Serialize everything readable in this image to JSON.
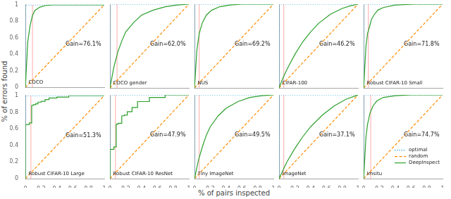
{
  "xlabel": "% of pairs inspected",
  "ylabel": "% of errors found",
  "chart_data": [
    {
      "type": "line",
      "annotations": [
        "Gain=76.1%",
        "COCO"
      ],
      "vline": {
        "value": 0.09,
        "color": "#ffaaaa"
      },
      "xlim": [
        0,
        1
      ],
      "ylim": [
        0,
        1
      ],
      "xticks": [
        0,
        0.2,
        0.4,
        0.6,
        0.8,
        1
      ],
      "yticks": [
        0,
        0.2,
        0.4,
        0.6,
        0.8,
        1
      ],
      "grid": false,
      "tick_labels": "y",
      "series": [
        {
          "name": "optimal",
          "color": "#1090d8",
          "line_style": "dotted",
          "x": [
            0,
            0.001,
            1.0
          ],
          "values": [
            0,
            1.0,
            1.0
          ]
        },
        {
          "name": "random",
          "color": "#ff8c00",
          "line_style": "dashed",
          "x": [
            0,
            1
          ],
          "values": [
            0,
            1
          ]
        },
        {
          "name": "DeepInspect",
          "color": "#2ca02c",
          "line_style": "solid",
          "x": [
            0,
            0.03,
            0.06,
            0.09,
            0.12,
            0.18,
            0.25,
            0.35,
            0.5,
            0.7,
            1.0
          ],
          "values": [
            0,
            0.55,
            0.75,
            0.87,
            0.93,
            0.97,
            0.99,
            1.0,
            1.0,
            1.0,
            1.0
          ]
        }
      ]
    },
    {
      "type": "line",
      "annotations": [
        "Gain=62.0%",
        "COCO gender"
      ],
      "vline": {
        "value": 0.09,
        "color": "#ffaaaa"
      },
      "xlim": [
        0,
        1
      ],
      "ylim": [
        0,
        1
      ],
      "xticks": [
        0,
        0.2,
        0.4,
        0.6,
        0.8,
        1
      ],
      "yticks": [
        0,
        0.2,
        0.4,
        0.6,
        0.8,
        1
      ],
      "grid": false,
      "tick_labels": false,
      "series": [
        {
          "name": "optimal",
          "color": "#1090d8",
          "line_style": "dotted",
          "x": [
            0,
            0.001,
            1.0
          ],
          "values": [
            0,
            1.0,
            1.0
          ]
        },
        {
          "name": "random",
          "color": "#ff8c00",
          "line_style": "dashed",
          "x": [
            0,
            1
          ],
          "values": [
            0,
            1
          ]
        },
        {
          "name": "DeepInspect",
          "color": "#2ca02c",
          "line_style": "solid",
          "x": [
            0,
            0.05,
            0.1,
            0.15,
            0.2,
            0.3,
            0.4,
            0.55,
            0.7,
            0.85,
            1.0
          ],
          "values": [
            0,
            0.25,
            0.43,
            0.56,
            0.67,
            0.78,
            0.87,
            0.93,
            0.97,
            0.99,
            1.0
          ]
        }
      ]
    },
    {
      "type": "line",
      "annotations": [
        "Gain=69.2%",
        "NUS"
      ],
      "vline": {
        "value": 0.06,
        "color": "#ffaaaa"
      },
      "xlim": [
        0,
        1
      ],
      "ylim": [
        0,
        1
      ],
      "xticks": [
        0,
        0.2,
        0.4,
        0.6,
        0.8,
        1
      ],
      "yticks": [
        0,
        0.2,
        0.4,
        0.6,
        0.8,
        1
      ],
      "grid": false,
      "tick_labels": false,
      "series": [
        {
          "name": "optimal",
          "color": "#1090d8",
          "line_style": "dotted",
          "x": [
            0,
            0.001,
            1.0
          ],
          "values": [
            0,
            1.0,
            1.0
          ]
        },
        {
          "name": "random",
          "color": "#ff8c00",
          "line_style": "dashed",
          "x": [
            0,
            1
          ],
          "values": [
            0,
            1
          ]
        },
        {
          "name": "DeepInspect",
          "color": "#2ca02c",
          "line_style": "solid",
          "x": [
            0,
            0.03,
            0.06,
            0.1,
            0.15,
            0.22,
            0.32,
            0.45,
            0.6,
            0.8,
            1.0
          ],
          "values": [
            0,
            0.45,
            0.65,
            0.78,
            0.87,
            0.93,
            0.97,
            0.99,
            1.0,
            1.0,
            1.0
          ]
        }
      ]
    },
    {
      "type": "line",
      "annotations": [
        "Gain=46.2%",
        "CIFAR-100"
      ],
      "vline": {
        "value": 0.06,
        "color": "#ffaaaa"
      },
      "xlim": [
        0,
        1
      ],
      "ylim": [
        0,
        1
      ],
      "xticks": [
        0,
        0.2,
        0.4,
        0.6,
        0.8,
        1
      ],
      "yticks": [
        0,
        0.2,
        0.4,
        0.6,
        0.8,
        1
      ],
      "grid": false,
      "tick_labels": false,
      "series": [
        {
          "name": "optimal",
          "color": "#1090d8",
          "line_style": "dotted",
          "x": [
            0,
            0.001,
            1.0
          ],
          "values": [
            0,
            1.0,
            1.0
          ]
        },
        {
          "name": "random",
          "color": "#ff8c00",
          "line_style": "dashed",
          "x": [
            0,
            1
          ],
          "values": [
            0,
            1
          ]
        },
        {
          "name": "DeepInspect",
          "color": "#2ca02c",
          "line_style": "solid",
          "x": [
            0,
            0.05,
            0.1,
            0.2,
            0.3,
            0.4,
            0.5,
            0.65,
            0.8,
            0.9,
            1.0
          ],
          "values": [
            0,
            0.12,
            0.22,
            0.4,
            0.55,
            0.67,
            0.77,
            0.88,
            0.95,
            0.98,
            1.0
          ]
        }
      ]
    },
    {
      "type": "line",
      "annotations": [
        "Gain=71.8%",
        "Robust CIFAR-10 Small"
      ],
      "vline": {
        "value": 0.06,
        "color": "#ffaaaa"
      },
      "xlim": [
        0,
        1
      ],
      "ylim": [
        0,
        1
      ],
      "xticks": [
        0,
        0.2,
        0.4,
        0.6,
        0.8,
        1
      ],
      "yticks": [
        0,
        0.2,
        0.4,
        0.6,
        0.8,
        1
      ],
      "grid": false,
      "tick_labels": false,
      "series": [
        {
          "name": "optimal",
          "color": "#1090d8",
          "line_style": "dotted",
          "x": [
            0,
            0.001,
            1.0
          ],
          "values": [
            0,
            1.0,
            1.0
          ]
        },
        {
          "name": "random",
          "color": "#ff8c00",
          "line_style": "dashed",
          "x": [
            0,
            1
          ],
          "values": [
            0,
            1
          ]
        },
        {
          "name": "DeepInspect",
          "color": "#2ca02c",
          "line_style": "solid",
          "x": [
            0,
            0.03,
            0.05,
            0.08,
            0.1,
            0.13,
            0.18,
            0.25,
            0.4,
            0.65,
            1.0
          ],
          "values": [
            0,
            0.5,
            0.65,
            0.75,
            0.82,
            0.87,
            0.93,
            0.96,
            0.99,
            1.0,
            1.0
          ]
        }
      ]
    },
    {
      "type": "line",
      "annotations": [
        "Gain=51.3%",
        "Robust CIFAR-10 Large"
      ],
      "vline": {
        "value": 0.07,
        "color": "#ffaaaa"
      },
      "xlim": [
        0,
        1
      ],
      "ylim": [
        0,
        1
      ],
      "xticks": [
        0,
        0.2,
        0.4,
        0.6,
        0.8,
        1
      ],
      "yticks": [
        0,
        0.2,
        0.4,
        0.6,
        0.8,
        1
      ],
      "grid": false,
      "series": [
        {
          "name": "optimal",
          "color": "#1090d8",
          "line_style": "dotted",
          "x": [
            0,
            0.001,
            1.0
          ],
          "values": [
            0,
            1.0,
            1.0
          ]
        },
        {
          "name": "random",
          "color": "#ff8c00",
          "line_style": "dashed",
          "x": [
            0,
            1
          ],
          "values": [
            0,
            1
          ]
        },
        {
          "name": "DeepInspect",
          "color": "#2ca02c",
          "line_style": "solid",
          "type": "step",
          "x": [
            0,
            0.05,
            0.08,
            0.1,
            0.13,
            0.16,
            0.2,
            0.25,
            0.3,
            0.4,
            0.55,
            0.75,
            1.0
          ],
          "values": [
            0,
            0.65,
            0.67,
            0.88,
            0.89,
            0.9,
            0.92,
            0.93,
            0.95,
            0.97,
            0.98,
            1.0,
            1.0
          ]
        }
      ]
    },
    {
      "type": "line",
      "annotations": [
        "Gain=47.9%",
        "Robust CIFAR-10 ResNet"
      ],
      "vline": {
        "value": 0.07,
        "color": "#ffaaaa"
      },
      "xlim": [
        0,
        1
      ],
      "ylim": [
        0,
        1
      ],
      "xticks": [
        0,
        0.2,
        0.4,
        0.6,
        0.8,
        1
      ],
      "yticks": [
        0,
        0.2,
        0.4,
        0.6,
        0.8,
        1
      ],
      "grid": false,
      "tick_labels": "x",
      "series": [
        {
          "name": "optimal",
          "color": "#1090d8",
          "line_style": "dotted",
          "x": [
            0,
            0.001,
            1.0
          ],
          "values": [
            0,
            1.0,
            1.0
          ]
        },
        {
          "name": "random",
          "color": "#ff8c00",
          "line_style": "dashed",
          "x": [
            0,
            1
          ],
          "values": [
            0,
            1
          ]
        },
        {
          "name": "DeepInspect",
          "color": "#2ca02c",
          "line_style": "solid",
          "type": "step",
          "x": [
            0,
            0.05,
            0.08,
            0.1,
            0.15,
            0.18,
            0.22,
            0.28,
            0.35,
            0.5,
            0.7,
            0.9,
            1.0
          ],
          "values": [
            0,
            0.35,
            0.38,
            0.65,
            0.66,
            0.75,
            0.76,
            0.8,
            0.85,
            0.92,
            0.97,
            1.0,
            1.0
          ]
        }
      ]
    },
    {
      "type": "line",
      "annotations": [
        "Gain=49.5%",
        "Tiny ImageNet"
      ],
      "vline": {
        "value": 0.06,
        "color": "#ffaaaa"
      },
      "xlim": [
        0,
        1
      ],
      "ylim": [
        0,
        1
      ],
      "xticks": [
        0,
        0.2,
        0.4,
        0.6,
        0.8,
        1
      ],
      "yticks": [
        0,
        0.2,
        0.4,
        0.6,
        0.8,
        1
      ],
      "grid": false,
      "tick_labels": "x",
      "series": [
        {
          "name": "optimal",
          "color": "#1090d8",
          "line_style": "dotted",
          "x": [
            0,
            0.001,
            1.0
          ],
          "values": [
            0,
            1.0,
            1.0
          ]
        },
        {
          "name": "random",
          "color": "#ff8c00",
          "line_style": "dashed",
          "x": [
            0,
            1
          ],
          "values": [
            0,
            1
          ]
        },
        {
          "name": "DeepInspect",
          "color": "#2ca02c",
          "line_style": "solid",
          "x": [
            0,
            0.05,
            0.1,
            0.15,
            0.2,
            0.3,
            0.4,
            0.55,
            0.7,
            0.85,
            1.0
          ],
          "values": [
            0,
            0.22,
            0.38,
            0.52,
            0.62,
            0.75,
            0.84,
            0.92,
            0.97,
            0.99,
            1.0
          ]
        }
      ]
    },
    {
      "type": "line",
      "annotations": [
        "Gain=37.1%",
        "imageNet"
      ],
      "vline": {
        "value": 0.06,
        "color": "#ffaaaa"
      },
      "xlim": [
        0,
        1
      ],
      "ylim": [
        0,
        1
      ],
      "xticks": [
        0,
        0.2,
        0.4,
        0.6,
        0.8,
        1
      ],
      "yticks": [
        0,
        0.2,
        0.4,
        0.6,
        0.8,
        1
      ],
      "grid": false,
      "tick_labels": "x",
      "series": [
        {
          "name": "optimal",
          "color": "#1090d8",
          "line_style": "dotted",
          "x": [
            0,
            0.001,
            1.0
          ],
          "values": [
            0,
            1.0,
            1.0
          ]
        },
        {
          "name": "random",
          "color": "#ff8c00",
          "line_style": "dashed",
          "x": [
            0,
            1
          ],
          "values": [
            0,
            1
          ]
        },
        {
          "name": "DeepInspect",
          "color": "#2ca02c",
          "line_style": "solid",
          "x": [
            0,
            0.05,
            0.1,
            0.2,
            0.3,
            0.4,
            0.55,
            0.7,
            0.85,
            1.0
          ],
          "values": [
            0,
            0.1,
            0.2,
            0.36,
            0.5,
            0.62,
            0.76,
            0.87,
            0.95,
            1.0
          ]
        }
      ]
    },
    {
      "type": "line",
      "annotations": [
        "Gain=74.7%",
        "Imsitu"
      ],
      "vline": {
        "value": 0.09,
        "color": "#ffaaaa"
      },
      "xlim": [
        0,
        1
      ],
      "ylim": [
        0,
        1
      ],
      "xticks": [
        0,
        0.2,
        0.4,
        0.6,
        0.8,
        1
      ],
      "yticks": [
        0,
        0.2,
        0.4,
        0.6,
        0.8,
        1
      ],
      "grid": false,
      "tick_labels": "x",
      "legend": "lower right",
      "series": [
        {
          "name": "optimal",
          "color": "#1090d8",
          "line_style": "dotted",
          "x": [
            0,
            0.001,
            1.0
          ],
          "values": [
            0,
            1.0,
            1.0
          ]
        },
        {
          "name": "random",
          "color": "#ff8c00",
          "line_style": "dashed",
          "x": [
            0,
            1
          ],
          "values": [
            0,
            1
          ]
        },
        {
          "name": "DeepInspect",
          "color": "#2ca02c",
          "line_style": "solid",
          "x": [
            0,
            0.03,
            0.05,
            0.08,
            0.12,
            0.17,
            0.25,
            0.4,
            0.6,
            0.8,
            1.0
          ],
          "values": [
            0,
            0.5,
            0.65,
            0.78,
            0.87,
            0.93,
            0.97,
            0.99,
            1.0,
            1.0,
            1.0
          ]
        }
      ]
    }
  ]
}
